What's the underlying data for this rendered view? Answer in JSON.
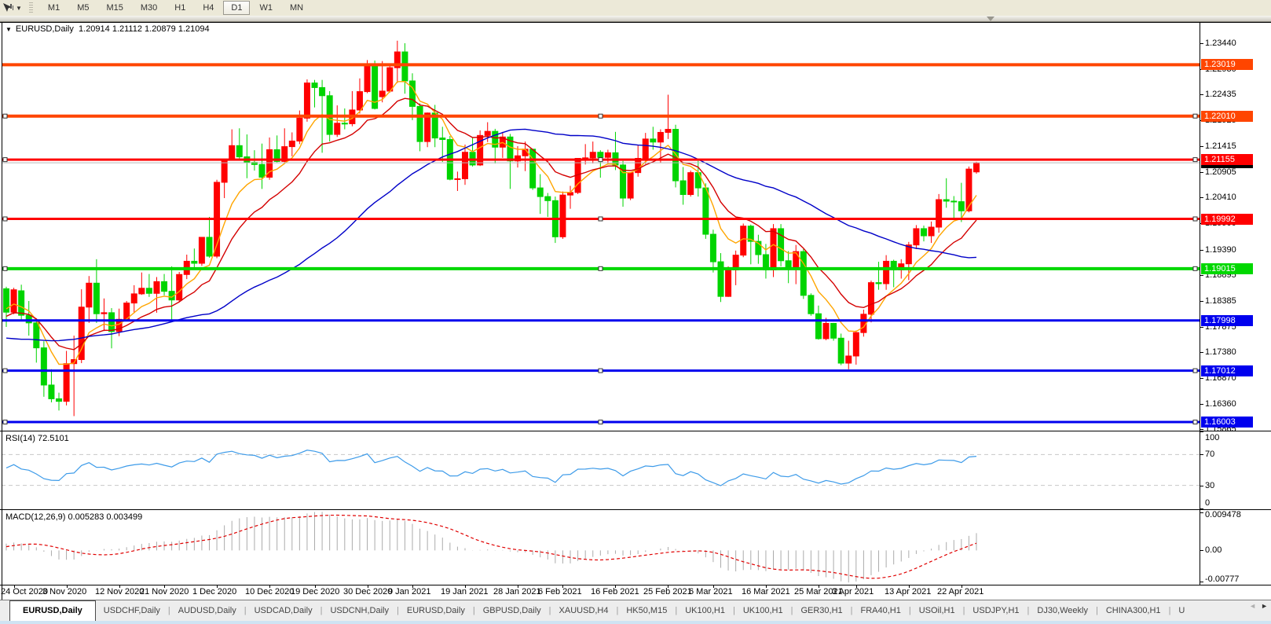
{
  "toolbar": {
    "tool_dropdown_glyph": "▼",
    "timeframes": [
      "M1",
      "M5",
      "M15",
      "M30",
      "H1",
      "H4",
      "D1",
      "W1",
      "MN"
    ],
    "active_timeframe": "D1"
  },
  "chart_header": {
    "collapse_glyph": "▼",
    "title": "EURUSD,Daily",
    "ohlc": "1.20914 1.21112 1.20879 1.21094"
  },
  "chart_data": {
    "type": "candlestick",
    "symbol": "EURUSD",
    "period": "Daily",
    "title": "EURUSD,Daily 1.20914 1.21112 1.20879 1.21094",
    "current_bar": {
      "open": 1.20914,
      "high": 1.21112,
      "low": 1.20879,
      "close": 1.21094
    },
    "price_range": {
      "max": 1.23857,
      "min": 1.15834
    },
    "price_axis_ticks": [
      "1.23440",
      "1.22930",
      "1.22435",
      "1.21925",
      "1.21415",
      "1.20905",
      "1.20410",
      "1.19900",
      "1.19390",
      "1.18895",
      "1.18385",
      "1.17875",
      "1.17380",
      "1.16870",
      "1.16360",
      "1.15865"
    ],
    "x_labels": [
      {
        "i": 1,
        "text": "24 Oct 2020"
      },
      {
        "i": 8,
        "text": "3 Nov 2020"
      },
      {
        "i": 15,
        "text": "12 Nov 2020"
      },
      {
        "i": 21,
        "text": "21 Nov 2020"
      },
      {
        "i": 28,
        "text": "1 Dec 2020"
      },
      {
        "i": 35,
        "text": "10 Dec 2020"
      },
      {
        "i": 41,
        "text": "19 Dec 2020"
      },
      {
        "i": 48,
        "text": "30 Dec 2020"
      },
      {
        "i": 54,
        "text": "9 Jan 2021"
      },
      {
        "i": 61,
        "text": "19 Jan 2021"
      },
      {
        "i": 68,
        "text": "28 Jan 2021"
      },
      {
        "i": 74,
        "text": "6 Feb 2021"
      },
      {
        "i": 81,
        "text": "16 Feb 2021"
      },
      {
        "i": 88,
        "text": "25 Feb 2021"
      },
      {
        "i": 94,
        "text": "6 Mar 2021"
      },
      {
        "i": 101,
        "text": "16 Mar 2021"
      },
      {
        "i": 108,
        "text": "25 Mar 2021"
      },
      {
        "i": 113,
        "text": "3 Apr 2021"
      },
      {
        "i": 120,
        "text": "13 Apr 2021"
      },
      {
        "i": 127,
        "text": "22 Apr 2021"
      }
    ],
    "colors": {
      "bull": "#FF0000",
      "bear": "#00D400",
      "background": "#FFFFFF",
      "border": "#000000"
    },
    "candles": [
      [
        1.1862,
        1.1866,
        1.1787,
        1.1816
      ],
      [
        1.1816,
        1.1864,
        1.1812,
        1.186
      ],
      [
        1.1858,
        1.187,
        1.1801,
        1.181
      ],
      [
        1.181,
        1.1838,
        1.177,
        1.1795
      ],
      [
        1.1795,
        1.18,
        1.1717,
        1.1746
      ],
      [
        1.1746,
        1.1759,
        1.165,
        1.1673
      ],
      [
        1.1673,
        1.1704,
        1.1639,
        1.1646
      ],
      [
        1.1646,
        1.1658,
        1.1623,
        1.1641
      ],
      [
        1.1641,
        1.174,
        1.1633,
        1.1715
      ],
      [
        1.1715,
        1.177,
        1.1612,
        1.1723
      ],
      [
        1.1723,
        1.1861,
        1.1716,
        1.1826
      ],
      [
        1.1826,
        1.1887,
        1.1795,
        1.1873
      ],
      [
        1.1873,
        1.192,
        1.1795,
        1.1813
      ],
      [
        1.1813,
        1.1843,
        1.1779,
        1.1815
      ],
      [
        1.1815,
        1.1824,
        1.1745,
        1.1778
      ],
      [
        1.1778,
        1.1823,
        1.1769,
        1.1802
      ],
      [
        1.1802,
        1.1838,
        1.1799,
        1.1834
      ],
      [
        1.1834,
        1.1869,
        1.1814,
        1.1852
      ],
      [
        1.1852,
        1.1894,
        1.185,
        1.1863
      ],
      [
        1.1863,
        1.1891,
        1.1846,
        1.1853
      ],
      [
        1.1853,
        1.1885,
        1.1815,
        1.1876
      ],
      [
        1.1876,
        1.1891,
        1.1849,
        1.1857
      ],
      [
        1.1857,
        1.1906,
        1.18,
        1.184
      ],
      [
        1.184,
        1.1895,
        1.1836,
        1.189
      ],
      [
        1.189,
        1.1929,
        1.1881,
        1.1916
      ],
      [
        1.1916,
        1.1941,
        1.1902,
        1.1912
      ],
      [
        1.1912,
        1.1963,
        1.1907,
        1.1963
      ],
      [
        1.1963,
        1.2003,
        1.1923,
        1.1926
      ],
      [
        1.1926,
        1.2076,
        1.1922,
        1.2071
      ],
      [
        1.2071,
        1.2117,
        1.204,
        1.2115
      ],
      [
        1.2115,
        1.2175,
        1.2114,
        1.2143
      ],
      [
        1.2143,
        1.2177,
        1.2115,
        1.2121
      ],
      [
        1.2121,
        1.2165,
        1.2079,
        1.211
      ],
      [
        1.211,
        1.2134,
        1.2094,
        1.2106
      ],
      [
        1.2106,
        1.2147,
        1.2058,
        1.2081
      ],
      [
        1.2081,
        1.2159,
        1.2076,
        1.2135
      ],
      [
        1.2135,
        1.2163,
        1.211,
        1.2112
      ],
      [
        1.2112,
        1.2177,
        1.211,
        1.2141
      ],
      [
        1.2141,
        1.2169,
        1.2122,
        1.2152
      ],
      [
        1.2152,
        1.2212,
        1.2146,
        1.2197
      ],
      [
        1.2197,
        1.2273,
        1.219,
        1.2266
      ],
      [
        1.2266,
        1.2272,
        1.2218,
        1.2257
      ],
      [
        1.2257,
        1.2272,
        1.2129,
        1.2241
      ],
      [
        1.2241,
        1.225,
        1.2151,
        1.2165
      ],
      [
        1.2165,
        1.2222,
        1.216,
        1.2187
      ],
      [
        1.2187,
        1.2216,
        1.2175,
        1.2186
      ],
      [
        1.2186,
        1.225,
        1.2181,
        1.2213
      ],
      [
        1.2213,
        1.2275,
        1.2206,
        1.2249
      ],
      [
        1.2249,
        1.2311,
        1.2246,
        1.2299
      ],
      [
        1.2299,
        1.231,
        1.2214,
        1.2216
      ],
      [
        1.2239,
        1.2309,
        1.2228,
        1.225
      ],
      [
        1.225,
        1.2303,
        1.2247,
        1.2296
      ],
      [
        1.2296,
        1.2349,
        1.2266,
        1.2327
      ],
      [
        1.2327,
        1.2344,
        1.2245,
        1.227
      ],
      [
        1.227,
        1.2285,
        1.2193,
        1.222
      ],
      [
        1.222,
        1.2226,
        1.2132,
        1.2151
      ],
      [
        1.2151,
        1.2208,
        1.214,
        1.2207
      ],
      [
        1.2207,
        1.2223,
        1.214,
        1.2158
      ],
      [
        1.2158,
        1.218,
        1.2111,
        1.2155
      ],
      [
        1.2155,
        1.2162,
        1.2075,
        1.2077
      ],
      [
        1.2077,
        1.2092,
        1.2054,
        1.2078
      ],
      [
        1.2078,
        1.2145,
        1.2066,
        1.213
      ],
      [
        1.213,
        1.2158,
        1.2102,
        1.2105
      ],
      [
        1.2105,
        1.2173,
        1.2103,
        1.2163
      ],
      [
        1.2163,
        1.2189,
        1.215,
        1.2171
      ],
      [
        1.2171,
        1.2176,
        1.2108,
        1.214
      ],
      [
        1.214,
        1.217,
        1.2119,
        1.216
      ],
      [
        1.216,
        1.2166,
        1.2058,
        1.2113
      ],
      [
        1.2113,
        1.2142,
        1.21,
        1.2123
      ],
      [
        1.2123,
        1.2151,
        1.2093,
        1.2136
      ],
      [
        1.2136,
        1.2136,
        1.2056,
        1.206
      ],
      [
        1.206,
        1.2087,
        1.2009,
        1.2043
      ],
      [
        1.2043,
        1.205,
        1.2003,
        1.2035
      ],
      [
        1.2035,
        1.2043,
        1.1952,
        1.1964
      ],
      [
        1.1964,
        1.2053,
        1.196,
        1.2046
      ],
      [
        1.2046,
        1.2064,
        1.2019,
        1.2051
      ],
      [
        1.2051,
        1.2118,
        1.2048,
        1.2118
      ],
      [
        1.2118,
        1.2146,
        1.2106,
        1.2119
      ],
      [
        1.2119,
        1.2151,
        1.2108,
        1.213
      ],
      [
        1.213,
        1.2134,
        1.208,
        1.212
      ],
      [
        1.212,
        1.2135,
        1.2108,
        1.2129
      ],
      [
        1.2129,
        1.217,
        1.2095,
        1.2105
      ],
      [
        1.2105,
        1.2113,
        1.2023,
        1.204
      ],
      [
        1.204,
        1.209,
        1.2036,
        1.209
      ],
      [
        1.209,
        1.2145,
        1.2082,
        1.2118
      ],
      [
        1.2118,
        1.2168,
        1.2107,
        1.2156
      ],
      [
        1.2156,
        1.218,
        1.2135,
        1.215
      ],
      [
        1.215,
        1.2175,
        1.2109,
        1.2169
      ],
      [
        1.2169,
        1.2243,
        1.2156,
        1.2175
      ],
      [
        1.2175,
        1.2184,
        1.2061,
        1.2074
      ],
      [
        1.2074,
        1.2101,
        1.2027,
        1.2047
      ],
      [
        1.2047,
        1.2094,
        1.2043,
        1.209
      ],
      [
        1.209,
        1.2113,
        1.2043,
        1.206
      ],
      [
        1.206,
        1.2069,
        1.196,
        1.1969
      ],
      [
        1.1969,
        1.1978,
        1.1894,
        1.1915
      ],
      [
        1.1915,
        1.1932,
        1.1836,
        1.1847
      ],
      [
        1.1847,
        1.1906,
        1.1846,
        1.1899
      ],
      [
        1.1899,
        1.1937,
        1.1869,
        1.1928
      ],
      [
        1.1928,
        1.199,
        1.1924,
        1.1985
      ],
      [
        1.1985,
        1.1988,
        1.191,
        1.1955
      ],
      [
        1.1955,
        1.1968,
        1.1911,
        1.1929
      ],
      [
        1.1929,
        1.195,
        1.1882,
        1.1899
      ],
      [
        1.1899,
        1.1989,
        1.1885,
        1.198
      ],
      [
        1.198,
        1.1989,
        1.1906,
        1.1917
      ],
      [
        1.1917,
        1.1936,
        1.1873,
        1.1905
      ],
      [
        1.1905,
        1.1948,
        1.1871,
        1.1935
      ],
      [
        1.1935,
        1.194,
        1.1842,
        1.1849
      ],
      [
        1.1849,
        1.1853,
        1.1809,
        1.1813
      ],
      [
        1.1813,
        1.1829,
        1.1762,
        1.1764
      ],
      [
        1.1764,
        1.1805,
        1.1761,
        1.1794
      ],
      [
        1.1794,
        1.1795,
        1.176,
        1.1765
      ],
      [
        1.1765,
        1.1774,
        1.1712,
        1.1716
      ],
      [
        1.1716,
        1.176,
        1.1704,
        1.173
      ],
      [
        1.173,
        1.178,
        1.1713,
        1.1776
      ],
      [
        1.1776,
        1.1821,
        1.1768,
        1.1812
      ],
      [
        1.1812,
        1.1878,
        1.1796,
        1.1874
      ],
      [
        1.1874,
        1.1915,
        1.186,
        1.1872
      ],
      [
        1.1872,
        1.1928,
        1.186,
        1.1916
      ],
      [
        1.1916,
        1.1919,
        1.1865,
        1.1899
      ],
      [
        1.1899,
        1.192,
        1.1882,
        1.1911
      ],
      [
        1.1911,
        1.1954,
        1.1879,
        1.1948
      ],
      [
        1.1948,
        1.1987,
        1.194,
        1.198
      ],
      [
        1.198,
        1.1986,
        1.1955,
        1.1966
      ],
      [
        1.1966,
        1.1994,
        1.1952,
        1.1983
      ],
      [
        1.1983,
        1.2048,
        1.1972,
        1.2037
      ],
      [
        1.2037,
        1.2079,
        1.2021,
        1.2034
      ],
      [
        1.2034,
        1.2044,
        1.2001,
        1.2033
      ],
      [
        1.2033,
        1.207,
        1.1993,
        1.2015
      ],
      [
        1.2015,
        1.2102,
        1.2012,
        1.2097
      ],
      [
        1.20914,
        1.21112,
        1.20879,
        1.21094
      ]
    ],
    "ma_seed": [
      1.184,
      1.187,
      1.192,
      1.196,
      1.19,
      1.185,
      1.183,
      1.19,
      1.191,
      1.193,
      1.194,
      1.191,
      1.185,
      1.18,
      1.178,
      1.172,
      1.168,
      1.163,
      1.166,
      1.168,
      1.172,
      1.175,
      1.174,
      1.176,
      1.171,
      1.168,
      1.172,
      1.174,
      1.178,
      1.177,
      1.173,
      1.171,
      1.169,
      1.172,
      1.176,
      1.18,
      1.184,
      1.187,
      1.183,
      1.177,
      1.172,
      1.17,
      1.175,
      1.179,
      1.182,
      1.185,
      1.187,
      1.183,
      1.181,
      1.185
    ],
    "overlays": [
      {
        "name": "ma-fast",
        "type": "ema",
        "period": 7,
        "color": "#FFA500"
      },
      {
        "name": "ma-mid",
        "type": "ema",
        "period": 14,
        "color": "#D40000"
      },
      {
        "name": "ma-slow",
        "type": "sma",
        "period": 40,
        "color": "#0000C8"
      }
    ],
    "levels": [
      {
        "price": 1.23019,
        "label": "1.23019",
        "color": "#FF4500",
        "width": 4,
        "selected": false
      },
      {
        "price": 1.2201,
        "label": "1.22010",
        "color": "#FF4500",
        "width": 4,
        "selected": true
      },
      {
        "price": 1.21155,
        "label": "1.21155",
        "color": "#FF0000",
        "width": 3,
        "selected": true
      },
      {
        "price": 1.19992,
        "label": "1.19992",
        "color": "#FF0000",
        "width": 3,
        "selected": true
      },
      {
        "price": 1.19015,
        "label": "1.19015",
        "color": "#00D800",
        "width": 4,
        "selected": true
      },
      {
        "price": 1.17998,
        "label": "1.17998",
        "color": "#0000EE",
        "width": 3,
        "selected": false
      },
      {
        "price": 1.17012,
        "label": "1.17012",
        "color": "#0000EE",
        "width": 3,
        "selected": true
      },
      {
        "price": 1.16003,
        "label": "1.16003",
        "color": "#0000EE",
        "width": 3,
        "selected": true
      }
    ],
    "current_price": {
      "value": 1.21094,
      "label": "1.21094",
      "line_color": "#B8B8B8",
      "tag_bg": "#000000"
    },
    "rsi": {
      "label": "RSI(14) 72.5101",
      "period": 14,
      "last_value": 72.5101,
      "overbought": 70,
      "oversold": 30,
      "range": [
        0,
        100
      ],
      "axis_ticks": [
        100,
        70,
        30,
        0
      ],
      "line_color": "#3D9BE9",
      "level_color": "#C8C8C8"
    },
    "macd": {
      "label": "MACD(12,26,9) 0.005283 0.003499",
      "fast": 12,
      "slow": 26,
      "signal_period": 9,
      "last_macd": 0.005283,
      "last_signal": 0.003499,
      "range": [
        -0.00777,
        0.009478
      ],
      "axis_ticks": [
        {
          "v": 0.009478,
          "text": "0.009478"
        },
        {
          "v": 0.0,
          "text": "0.00"
        },
        {
          "v": -0.00777,
          "text": "-0.00777"
        }
      ],
      "histogram_color": "#ABABAB",
      "signal_color": "#E00000"
    }
  },
  "tabs": {
    "separator": "|",
    "scroll_left_glyph": "◄",
    "scroll_right_glyph": "►",
    "items": [
      {
        "label": "EURUSD,Daily",
        "active": true
      },
      {
        "label": "USDCHF,Daily"
      },
      {
        "label": "AUDUSD,Daily"
      },
      {
        "label": "USDCAD,Daily"
      },
      {
        "label": "USDCNH,Daily"
      },
      {
        "label": "EURUSD,Daily"
      },
      {
        "label": "GBPUSD,Daily"
      },
      {
        "label": "XAUUSD,H4"
      },
      {
        "label": "HK50,M15"
      },
      {
        "label": "UK100,H1"
      },
      {
        "label": "UK100,H1"
      },
      {
        "label": "GER30,H1"
      },
      {
        "label": "FRA40,H1"
      },
      {
        "label": "USOil,H1"
      },
      {
        "label": "USDJPY,H1"
      },
      {
        "label": "DJ30,Weekly"
      },
      {
        "label": "CHINA300,H1"
      },
      {
        "label": "U"
      }
    ]
  }
}
